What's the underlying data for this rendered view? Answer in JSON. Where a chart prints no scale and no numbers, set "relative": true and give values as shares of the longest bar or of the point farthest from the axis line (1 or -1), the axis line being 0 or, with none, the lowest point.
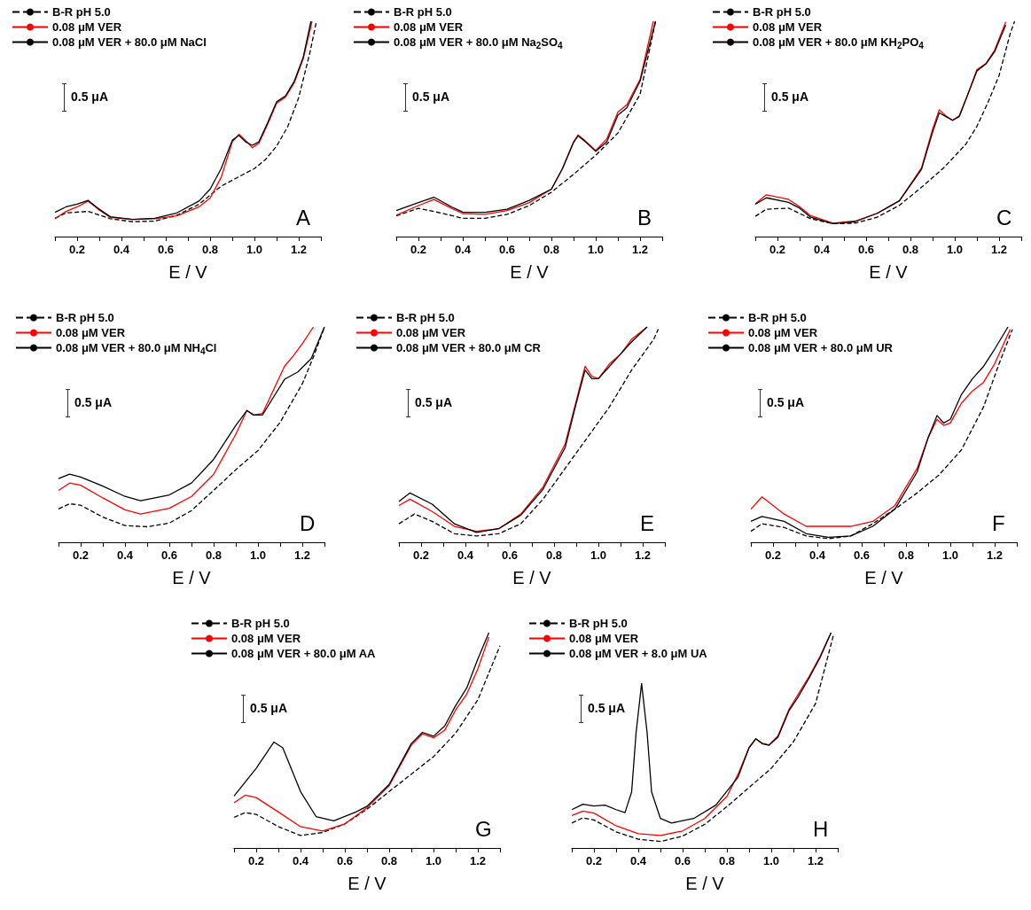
{
  "chart_data": [
    {
      "type": "line",
      "relative": true,
      "xlabel": "E / V",
      "xlim": [
        0.1,
        1.3
      ],
      "xticks": [
        {
          "value": 0.1,
          "label": null
        },
        0.2,
        {
          "value": 0.3,
          "label": null
        },
        0.4,
        {
          "value": 0.5,
          "label": null
        },
        0.6,
        {
          "value": 0.7,
          "label": null
        },
        0.8,
        {
          "value": 0.9,
          "label": null
        },
        {
          "value": 1,
          "label": "1.0"
        },
        {
          "value": 1.1,
          "label": null
        },
        1.2,
        {
          "value": 1.3,
          "label": null
        }
      ],
      "legend": "top left",
      "marker": "none",
      "annotations": [
        "A",
        "0.5 μA"
      ],
      "series": [
        {
          "name": "B-R pH 5.0",
          "color": "#000000",
          "line_style": "dashed",
          "x": [
            0.1,
            0.15,
            0.25,
            0.35,
            0.45,
            0.55,
            0.65,
            0.75,
            0.85,
            0.95,
            1.0,
            1.05,
            1.1,
            1.15,
            1.2,
            1.25,
            1.28
          ],
          "values": [
            0.085,
            0.11,
            0.117,
            0.083,
            0.069,
            0.072,
            0.099,
            0.15,
            0.234,
            0.289,
            0.316,
            0.358,
            0.42,
            0.51,
            0.646,
            0.853,
            1.0
          ]
        },
        {
          "name": "0.08 μM VER",
          "color": "#ff0000",
          "line_style": "solid",
          "x": [
            0.1,
            0.15,
            0.2,
            0.25,
            0.3,
            0.35,
            0.45,
            0.55,
            0.65,
            0.75,
            0.8,
            0.85,
            0.9,
            0.93,
            0.96,
            0.99,
            1.02,
            1.06,
            1.1,
            1.14,
            1.18,
            1.22,
            1.26
          ],
          "values": [
            0.083,
            0.117,
            0.138,
            0.165,
            0.124,
            0.089,
            0.08,
            0.083,
            0.096,
            0.138,
            0.179,
            0.275,
            0.44,
            0.475,
            0.447,
            0.413,
            0.433,
            0.523,
            0.619,
            0.647,
            0.715,
            0.825,
            1.0
          ]
        },
        {
          "name": "0.08 μM VER + 80.0 μM NaCl",
          "color": "#000000",
          "line_style": "solid",
          "x": [
            0.1,
            0.15,
            0.2,
            0.25,
            0.3,
            0.35,
            0.45,
            0.55,
            0.65,
            0.75,
            0.8,
            0.85,
            0.9,
            0.93,
            0.96,
            0.99,
            1.02,
            1.06,
            1.1,
            1.14,
            1.18,
            1.22,
            1.255
          ],
          "values": [
            0.113,
            0.138,
            0.151,
            0.168,
            0.127,
            0.092,
            0.08,
            0.085,
            0.11,
            0.165,
            0.22,
            0.316,
            0.447,
            0.47,
            0.44,
            0.424,
            0.44,
            0.53,
            0.626,
            0.653,
            0.722,
            0.832,
            1.0
          ]
        }
      ]
    },
    {
      "type": "line",
      "relative": true,
      "xlabel": "E / V",
      "xlim": [
        0.1,
        1.3
      ],
      "xticks": [
        {
          "value": 0.1,
          "label": null
        },
        0.2,
        {
          "value": 0.3,
          "label": null
        },
        0.4,
        {
          "value": 0.5,
          "label": null
        },
        0.6,
        {
          "value": 0.7,
          "label": null
        },
        0.8,
        {
          "value": 0.9,
          "label": null
        },
        {
          "value": 1,
          "label": "1.0"
        },
        {
          "value": 1.1,
          "label": null
        },
        1.2,
        {
          "value": 1.3,
          "label": null
        }
      ],
      "legend": "top left",
      "marker": "none",
      "annotations": [
        "B",
        "0.5 μA"
      ],
      "series": [
        {
          "name": "B-R pH 5.0",
          "color": "#000000",
          "line_style": "dashed",
          "x": [
            0.1,
            0.2,
            0.3,
            0.4,
            0.5,
            0.6,
            0.7,
            0.8,
            0.9,
            1.0,
            1.1,
            1.2,
            1.27
          ],
          "values": [
            0.096,
            0.131,
            0.11,
            0.085,
            0.085,
            0.103,
            0.144,
            0.206,
            0.289,
            0.378,
            0.481,
            0.66,
            1.0
          ]
        },
        {
          "name": "0.08 μM VER",
          "color": "#ff0000",
          "line_style": "solid",
          "x": [
            0.1,
            0.2,
            0.27,
            0.35,
            0.4,
            0.5,
            0.6,
            0.7,
            0.8,
            0.85,
            0.9,
            0.92,
            0.95,
            1.0,
            1.05,
            1.1,
            1.14,
            1.2,
            1.26
          ],
          "values": [
            0.099,
            0.144,
            0.172,
            0.131,
            0.107,
            0.103,
            0.121,
            0.158,
            0.22,
            0.316,
            0.44,
            0.472,
            0.447,
            0.399,
            0.454,
            0.578,
            0.612,
            0.729,
            1.0
          ]
        },
        {
          "name": "0.08 μM VER + 80.0 μM Na$_{2}$SO$_{4}$",
          "color": "#000000",
          "line_style": "solid",
          "x": [
            0.1,
            0.2,
            0.27,
            0.35,
            0.4,
            0.5,
            0.6,
            0.7,
            0.8,
            0.85,
            0.9,
            0.92,
            0.95,
            1.0,
            1.05,
            1.1,
            1.14,
            1.2,
            1.27
          ],
          "values": [
            0.121,
            0.158,
            0.183,
            0.138,
            0.114,
            0.113,
            0.127,
            0.168,
            0.22,
            0.316,
            0.437,
            0.468,
            0.443,
            0.396,
            0.44,
            0.564,
            0.598,
            0.722,
            1.0
          ]
        }
      ]
    },
    {
      "type": "line",
      "relative": true,
      "xlabel": "E / V",
      "xlim": [
        0.1,
        1.3
      ],
      "xticks": [
        {
          "value": 0.1,
          "label": null
        },
        0.2,
        {
          "value": 0.3,
          "label": null
        },
        0.4,
        {
          "value": 0.5,
          "label": null
        },
        0.6,
        {
          "value": 0.7,
          "label": null
        },
        0.8,
        {
          "value": 0.9,
          "label": null
        },
        {
          "value": 1,
          "label": "1.0"
        },
        {
          "value": 1.1,
          "label": null
        },
        1.2,
        {
          "value": 1.3,
          "label": null
        }
      ],
      "legend": "top left",
      "marker": "none",
      "annotations": [
        "C",
        "0.5 μA"
      ],
      "series": [
        {
          "name": "B-R pH 5.0",
          "color": "#000000",
          "line_style": "dashed",
          "x": [
            0.1,
            0.15,
            0.25,
            0.35,
            0.45,
            0.55,
            0.65,
            0.75,
            0.85,
            0.95,
            1.05,
            1.1,
            1.15,
            1.2,
            1.25,
            1.27
          ],
          "values": [
            0.094,
            0.127,
            0.132,
            0.083,
            0.06,
            0.062,
            0.09,
            0.145,
            0.229,
            0.319,
            0.429,
            0.512,
            0.623,
            0.748,
            0.942,
            1.0
          ]
        },
        {
          "name": "0.08 μM VER",
          "color": "#ff0000",
          "line_style": "solid",
          "x": [
            0.1,
            0.15,
            0.25,
            0.3,
            0.35,
            0.45,
            0.55,
            0.65,
            0.75,
            0.85,
            0.9,
            0.93,
            0.96,
            0.99,
            1.02,
            1.06,
            1.1,
            1.14,
            1.18,
            1.23
          ],
          "values": [
            0.152,
            0.194,
            0.173,
            0.139,
            0.097,
            0.062,
            0.072,
            0.108,
            0.166,
            0.319,
            0.499,
            0.589,
            0.561,
            0.54,
            0.561,
            0.665,
            0.776,
            0.803,
            0.866,
            0.997
          ]
        },
        {
          "name": "0.08 μM VER + 80.0 μM KH$_{2}$PO$_{4}$",
          "color": "#000000",
          "line_style": "solid",
          "x": [
            0.1,
            0.15,
            0.25,
            0.3,
            0.35,
            0.45,
            0.55,
            0.65,
            0.75,
            0.85,
            0.9,
            0.93,
            0.96,
            0.99,
            1.02,
            1.06,
            1.1,
            1.14,
            1.18,
            1.23
          ],
          "values": [
            0.15,
            0.18,
            0.159,
            0.132,
            0.09,
            0.06,
            0.069,
            0.108,
            0.166,
            0.312,
            0.485,
            0.575,
            0.557,
            0.54,
            0.557,
            0.662,
            0.769,
            0.801,
            0.859,
            0.983
          ]
        }
      ]
    },
    {
      "type": "line",
      "relative": true,
      "xlabel": "E / V",
      "xlim": [
        0.1,
        1.3
      ],
      "xticks": [
        {
          "value": 0.1,
          "label": null
        },
        0.2,
        {
          "value": 0.3,
          "label": null
        },
        0.4,
        {
          "value": 0.5,
          "label": null
        },
        0.6,
        {
          "value": 0.7,
          "label": null
        },
        0.8,
        {
          "value": 0.9,
          "label": null
        },
        {
          "value": 1,
          "label": "1.0"
        },
        {
          "value": 1.1,
          "label": null
        },
        1.2,
        {
          "value": 1.3,
          "label": null
        }
      ],
      "legend": "top left",
      "marker": "none",
      "annotations": [
        "D",
        "0.5 μA"
      ],
      "series": [
        {
          "name": "B-R pH 5.0",
          "color": "#000000",
          "line_style": "dashed",
          "x": [
            0.1,
            0.15,
            0.2,
            0.3,
            0.4,
            0.5,
            0.6,
            0.7,
            0.8,
            0.9,
            1.0,
            1.1,
            1.2,
            1.25,
            1.3
          ],
          "values": [
            0.155,
            0.179,
            0.172,
            0.117,
            0.078,
            0.072,
            0.089,
            0.147,
            0.241,
            0.337,
            0.426,
            0.557,
            0.736,
            0.86,
            1.0
          ]
        },
        {
          "name": "0.08 μM VER",
          "color": "#ff0000",
          "line_style": "solid",
          "x": [
            0.1,
            0.15,
            0.2,
            0.3,
            0.4,
            0.47,
            0.6,
            0.7,
            0.8,
            0.9,
            0.95,
            0.98,
            1.02,
            1.07,
            1.12,
            1.16,
            1.2,
            1.25
          ],
          "values": [
            0.241,
            0.275,
            0.265,
            0.206,
            0.151,
            0.131,
            0.158,
            0.213,
            0.316,
            0.502,
            0.612,
            0.591,
            0.598,
            0.708,
            0.818,
            0.867,
            0.922,
            1.0
          ]
        },
        {
          "name": "0.08 μM VER + 80.0 μM NH$_{4}$Cl",
          "color": "#000000",
          "line_style": "solid",
          "x": [
            0.1,
            0.15,
            0.2,
            0.3,
            0.4,
            0.47,
            0.6,
            0.7,
            0.8,
            0.9,
            0.95,
            0.98,
            1.02,
            1.07,
            1.12,
            1.18,
            1.24,
            1.3
          ],
          "values": [
            0.296,
            0.316,
            0.303,
            0.261,
            0.213,
            0.193,
            0.22,
            0.275,
            0.385,
            0.543,
            0.612,
            0.591,
            0.591,
            0.674,
            0.757,
            0.791,
            0.853,
            1.0
          ]
        }
      ]
    },
    {
      "type": "line",
      "relative": true,
      "xlabel": "E / V",
      "xlim": [
        0.1,
        1.3
      ],
      "xticks": [
        {
          "value": 0.1,
          "label": null
        },
        0.2,
        {
          "value": 0.3,
          "label": null
        },
        0.4,
        {
          "value": 0.5,
          "label": null
        },
        0.6,
        {
          "value": 0.7,
          "label": null
        },
        0.8,
        {
          "value": 0.9,
          "label": null
        },
        {
          "value": 1,
          "label": "1.0"
        },
        {
          "value": 1.1,
          "label": null
        },
        1.2,
        {
          "value": 1.3,
          "label": null
        }
      ],
      "legend": "top left",
      "marker": "none",
      "annotations": [
        "E",
        "0.5 μA"
      ],
      "series": [
        {
          "name": "B-R pH 5.0",
          "color": "#000000",
          "line_style": "dashed",
          "x": [
            0.1,
            0.17,
            0.25,
            0.35,
            0.45,
            0.55,
            0.65,
            0.75,
            0.85,
            0.95,
            1.05,
            1.15,
            1.25,
            1.27
          ],
          "values": [
            0.086,
            0.131,
            0.097,
            0.04,
            0.029,
            0.04,
            0.086,
            0.2,
            0.343,
            0.486,
            0.629,
            0.8,
            0.943,
            0.99
          ]
        },
        {
          "name": "0.08 μM VER",
          "color": "#ff0000",
          "line_style": "solid",
          "x": [
            0.1,
            0.15,
            0.25,
            0.35,
            0.45,
            0.55,
            0.65,
            0.75,
            0.85,
            0.9,
            0.94,
            0.97,
            1.0,
            1.05,
            1.1,
            1.15,
            1.22
          ],
          "values": [
            0.171,
            0.2,
            0.143,
            0.074,
            0.051,
            0.063,
            0.131,
            0.257,
            0.457,
            0.657,
            0.817,
            0.771,
            0.76,
            0.829,
            0.874,
            0.943,
            1.0
          ]
        },
        {
          "name": "0.08 μM VER + 80.0 μM CR",
          "color": "#000000",
          "line_style": "solid",
          "x": [
            0.1,
            0.15,
            0.25,
            0.35,
            0.45,
            0.55,
            0.65,
            0.75,
            0.85,
            0.9,
            0.94,
            0.97,
            1.0,
            1.05,
            1.1,
            1.15,
            1.22
          ],
          "values": [
            0.189,
            0.229,
            0.177,
            0.086,
            0.046,
            0.063,
            0.126,
            0.246,
            0.44,
            0.646,
            0.8,
            0.76,
            0.76,
            0.817,
            0.874,
            0.931,
            1.0
          ]
        }
      ]
    },
    {
      "type": "line",
      "relative": true,
      "xlabel": "E / V",
      "xlim": [
        0.1,
        1.3
      ],
      "xticks": [
        {
          "value": 0.1,
          "label": null
        },
        0.2,
        {
          "value": 0.3,
          "label": null
        },
        0.4,
        {
          "value": 0.5,
          "label": null
        },
        0.6,
        {
          "value": 0.7,
          "label": null
        },
        0.8,
        {
          "value": 0.9,
          "label": null
        },
        {
          "value": 1,
          "label": "1.0"
        },
        {
          "value": 1.1,
          "label": null
        },
        1.2,
        {
          "value": 1.3,
          "label": null
        }
      ],
      "legend": "top left",
      "marker": "none",
      "annotations": [
        "F",
        "0.5 μA"
      ],
      "series": [
        {
          "name": "B-R pH 5.0",
          "color": "#000000",
          "line_style": "dashed",
          "x": [
            0.1,
            0.15,
            0.25,
            0.35,
            0.45,
            0.55,
            0.65,
            0.75,
            0.85,
            0.95,
            1.05,
            1.15,
            1.22,
            1.28
          ],
          "values": [
            0.051,
            0.086,
            0.069,
            0.029,
            0.017,
            0.029,
            0.086,
            0.154,
            0.229,
            0.314,
            0.429,
            0.629,
            0.829,
            0.989
          ]
        },
        {
          "name": "0.08 μM VER",
          "color": "#ff0000",
          "line_style": "solid",
          "x": [
            0.1,
            0.15,
            0.25,
            0.35,
            0.45,
            0.55,
            0.65,
            0.75,
            0.85,
            0.9,
            0.94,
            0.97,
            1.0,
            1.05,
            1.1,
            1.15,
            1.2,
            1.27
          ],
          "values": [
            0.154,
            0.211,
            0.131,
            0.074,
            0.074,
            0.074,
            0.097,
            0.171,
            0.343,
            0.486,
            0.571,
            0.543,
            0.554,
            0.646,
            0.703,
            0.743,
            0.829,
            0.989
          ]
        },
        {
          "name": "0.08 μM VER + 80.0 μM UR",
          "color": "#000000",
          "line_style": "solid",
          "x": [
            0.1,
            0.15,
            0.25,
            0.35,
            0.45,
            0.55,
            0.65,
            0.75,
            0.85,
            0.9,
            0.94,
            0.97,
            1.0,
            1.05,
            1.1,
            1.15,
            1.2,
            1.26
          ],
          "values": [
            0.097,
            0.12,
            0.097,
            0.04,
            0.023,
            0.029,
            0.074,
            0.154,
            0.326,
            0.486,
            0.589,
            0.554,
            0.571,
            0.686,
            0.76,
            0.817,
            0.897,
            1.0
          ]
        }
      ]
    },
    {
      "type": "line",
      "relative": true,
      "xlabel": "E / V",
      "xlim": [
        0.1,
        1.3
      ],
      "xticks": [
        {
          "value": 0.1,
          "label": null
        },
        0.2,
        {
          "value": 0.3,
          "label": null
        },
        0.4,
        {
          "value": 0.5,
          "label": null
        },
        0.6,
        {
          "value": 0.7,
          "label": null
        },
        0.8,
        {
          "value": 0.9,
          "label": null
        },
        {
          "value": 1,
          "label": "1.0"
        },
        {
          "value": 1.1,
          "label": null
        },
        1.2,
        {
          "value": 1.3,
          "label": null
        }
      ],
      "legend": "top left",
      "marker": "none",
      "annotations": [
        "G",
        "0.5 μA"
      ],
      "series": [
        {
          "name": "B-R pH 5.0",
          "color": "#000000",
          "line_style": "dashed",
          "x": [
            0.1,
            0.15,
            0.2,
            0.3,
            0.4,
            0.5,
            0.6,
            0.7,
            0.8,
            0.9,
            1.0,
            1.1,
            1.2,
            1.3
          ],
          "values": [
            0.142,
            0.164,
            0.156,
            0.099,
            0.058,
            0.072,
            0.112,
            0.18,
            0.262,
            0.343,
            0.424,
            0.533,
            0.688,
            0.939
          ]
        },
        {
          "name": "0.08 μM VER",
          "color": "#ff0000",
          "line_style": "solid",
          "x": [
            0.1,
            0.15,
            0.2,
            0.3,
            0.4,
            0.5,
            0.6,
            0.7,
            0.8,
            0.9,
            0.95,
            1.0,
            1.05,
            1.1,
            1.15,
            1.2,
            1.25
          ],
          "values": [
            0.21,
            0.245,
            0.234,
            0.167,
            0.099,
            0.079,
            0.112,
            0.187,
            0.289,
            0.478,
            0.53,
            0.512,
            0.546,
            0.641,
            0.715,
            0.831,
            0.98
          ]
        },
        {
          "name": "0.08 μM VER + 80.0 μM AA",
          "color": "#000000",
          "line_style": "solid",
          "x": [
            0.1,
            0.2,
            0.28,
            0.32,
            0.4,
            0.47,
            0.55,
            0.65,
            0.7,
            0.8,
            0.9,
            0.95,
            1.0,
            1.05,
            1.1,
            1.15,
            1.2,
            1.25
          ],
          "values": [
            0.241,
            0.37,
            0.492,
            0.465,
            0.262,
            0.146,
            0.126,
            0.167,
            0.194,
            0.295,
            0.485,
            0.537,
            0.519,
            0.566,
            0.661,
            0.743,
            0.878,
            1.0
          ]
        }
      ]
    },
    {
      "type": "line",
      "relative": true,
      "xlabel": "E / V",
      "xlim": [
        0.1,
        1.3
      ],
      "xticks": [
        {
          "value": 0.1,
          "label": null
        },
        0.2,
        {
          "value": 0.3,
          "label": null
        },
        0.4,
        {
          "value": 0.5,
          "label": null
        },
        0.6,
        {
          "value": 0.7,
          "label": null
        },
        0.8,
        {
          "value": 0.9,
          "label": null
        },
        {
          "value": 1,
          "label": "1.0"
        },
        {
          "value": 1.1,
          "label": null
        },
        1.2,
        {
          "value": 1.3,
          "label": null
        }
      ],
      "legend": "top left",
      "marker": "none",
      "annotations": [
        "H",
        "0.5 μA"
      ],
      "series": [
        {
          "name": "B-R pH 5.0",
          "color": "#000000",
          "line_style": "dashed",
          "x": [
            0.1,
            0.15,
            0.2,
            0.3,
            0.4,
            0.5,
            0.6,
            0.7,
            0.8,
            0.9,
            1.0,
            1.1,
            1.2,
            1.28
          ],
          "values": [
            0.116,
            0.14,
            0.13,
            0.075,
            0.041,
            0.03,
            0.055,
            0.11,
            0.192,
            0.281,
            0.37,
            0.493,
            0.671,
            0.986
          ]
        },
        {
          "name": "0.08 μM VER",
          "color": "#ff0000",
          "line_style": "solid",
          "x": [
            0.1,
            0.15,
            0.2,
            0.3,
            0.4,
            0.5,
            0.6,
            0.7,
            0.8,
            0.85,
            0.9,
            0.93,
            0.96,
            0.99,
            1.03,
            1.08,
            1.12,
            1.17,
            1.22,
            1.27
          ],
          "values": [
            0.151,
            0.171,
            0.162,
            0.103,
            0.066,
            0.058,
            0.079,
            0.137,
            0.24,
            0.342,
            0.466,
            0.507,
            0.486,
            0.479,
            0.521,
            0.644,
            0.712,
            0.795,
            0.89,
            1.0
          ]
        },
        {
          "name": "0.08 μM VER + 8.0 μM UA",
          "color": "#000000",
          "line_style": "solid",
          "x": [
            0.1,
            0.15,
            0.2,
            0.25,
            0.3,
            0.34,
            0.37,
            0.39,
            0.415,
            0.44,
            0.46,
            0.5,
            0.55,
            0.65,
            0.75,
            0.85,
            0.9,
            0.93,
            0.96,
            0.99,
            1.03,
            1.08,
            1.12,
            1.17,
            1.22,
            1.27
          ],
          "values": [
            0.178,
            0.203,
            0.195,
            0.199,
            0.178,
            0.164,
            0.26,
            0.534,
            0.764,
            0.534,
            0.26,
            0.137,
            0.116,
            0.137,
            0.199,
            0.329,
            0.466,
            0.507,
            0.484,
            0.477,
            0.514,
            0.637,
            0.699,
            0.788,
            0.884,
            1.0
          ]
        }
      ]
    }
  ]
}
